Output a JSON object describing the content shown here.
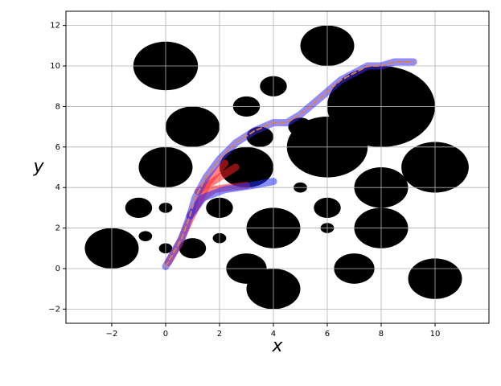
{
  "chart_data": {
    "type": "line",
    "x_label": "x",
    "y_label": "y",
    "xlim": [
      -3.7,
      12
    ],
    "ylim": [
      -2.7,
      12.7
    ],
    "xticks": [
      {
        "value": -2,
        "label": "−2"
      },
      0,
      2,
      4,
      6,
      8,
      10
    ],
    "yticks": [
      {
        "value": -2,
        "label": "−2"
      },
      0,
      2,
      4,
      6,
      8,
      10,
      12
    ],
    "grid": true,
    "obstacle_color": "#000000",
    "obstacles": [
      {
        "x": 0,
        "y": 10,
        "r": 1.2
      },
      {
        "x": 6,
        "y": 11,
        "r": 1.0
      },
      {
        "x": 4,
        "y": 9,
        "r": 0.5
      },
      {
        "x": 3,
        "y": 8,
        "r": 0.5
      },
      {
        "x": 1,
        "y": 7,
        "r": 1.0
      },
      {
        "x": 8,
        "y": 8,
        "r": 2.0
      },
      {
        "x": 6,
        "y": 6,
        "r": 1.5
      },
      {
        "x": 5,
        "y": 7,
        "r": 0.45
      },
      {
        "x": 3.5,
        "y": 6.5,
        "r": 0.5
      },
      {
        "x": 0,
        "y": 5,
        "r": 1.0
      },
      {
        "x": 3,
        "y": 5,
        "r": 1.0
      },
      {
        "x": 10,
        "y": 5,
        "r": 1.25
      },
      {
        "x": 8,
        "y": 4,
        "r": 1.0
      },
      {
        "x": 5,
        "y": 4,
        "r": 0.25
      },
      {
        "x": -1,
        "y": 3,
        "r": 0.5
      },
      {
        "x": 0,
        "y": 3,
        "r": 0.25
      },
      {
        "x": 2,
        "y": 3,
        "r": 0.5
      },
      {
        "x": 6,
        "y": 3,
        "r": 0.5
      },
      {
        "x": -0.75,
        "y": 1.6,
        "r": 0.25
      },
      {
        "x": 2,
        "y": 1.5,
        "r": 0.25
      },
      {
        "x": 4,
        "y": 2,
        "r": 1.0
      },
      {
        "x": 8,
        "y": 2,
        "r": 1.0
      },
      {
        "x": 6,
        "y": 2,
        "r": 0.25
      },
      {
        "x": -2,
        "y": 1,
        "r": 1.0
      },
      {
        "x": 0,
        "y": 1,
        "r": 0.25
      },
      {
        "x": 1,
        "y": 1,
        "r": 0.5
      },
      {
        "x": 3,
        "y": 0,
        "r": 0.75
      },
      {
        "x": 7,
        "y": 0,
        "r": 0.75
      },
      {
        "x": 10,
        "y": -0.5,
        "r": 1.0
      },
      {
        "x": 4,
        "y": -1,
        "r": 1.0
      }
    ],
    "series": [
      {
        "color": "#ff2020",
        "x": [
          0.9,
          1.3,
          1.8,
          2.3,
          3.0
        ],
        "y": [
          2.6,
          3.4,
          3.9,
          4.0,
          4.1
        ]
      },
      {
        "color": "#ff2020",
        "x": [
          1.2,
          2.0,
          2.6
        ],
        "y": [
          3.8,
          4.5,
          5.0
        ]
      },
      {
        "color": "#ff2020",
        "x": [
          0.1,
          0.5,
          0.9,
          1.2,
          1.6,
          2.2
        ],
        "y": [
          0.3,
          1.2,
          2.4,
          3.2,
          4.3,
          5.2
        ]
      },
      {
        "color": "#2030ff",
        "x": [
          0.9,
          1.4,
          2.2,
          3.2,
          4.0
        ],
        "y": [
          2.6,
          3.5,
          3.9,
          4.1,
          4.3
        ]
      },
      {
        "color": "#3a2cf0",
        "x": [
          0,
          0.3,
          0.6,
          0.9,
          1.1,
          1.5,
          2.0,
          2.6,
          3.3,
          4.0,
          4.5,
          5.0,
          5.8,
          6.5,
          7.5,
          8.0,
          8.5,
          9.2
        ],
        "y": [
          0.1,
          0.8,
          1.5,
          2.6,
          3.5,
          4.5,
          5.4,
          6.2,
          6.8,
          7.2,
          7.2,
          7.6,
          8.5,
          9.3,
          10.0,
          10.0,
          10.2,
          10.2
        ]
      },
      {
        "color": "#d9834a",
        "dashed": true,
        "x": [
          0,
          0.3,
          0.6,
          0.9,
          1.1,
          1.5,
          2.0,
          2.6,
          3.3,
          4.0,
          4.5,
          5.0,
          5.8,
          6.5,
          7.5,
          8.0,
          8.5,
          9.2
        ],
        "y": [
          0.1,
          0.8,
          1.5,
          2.6,
          3.5,
          4.5,
          5.4,
          6.2,
          6.8,
          7.2,
          7.2,
          7.6,
          8.5,
          9.3,
          10.0,
          10.0,
          10.2,
          10.2
        ]
      }
    ]
  }
}
